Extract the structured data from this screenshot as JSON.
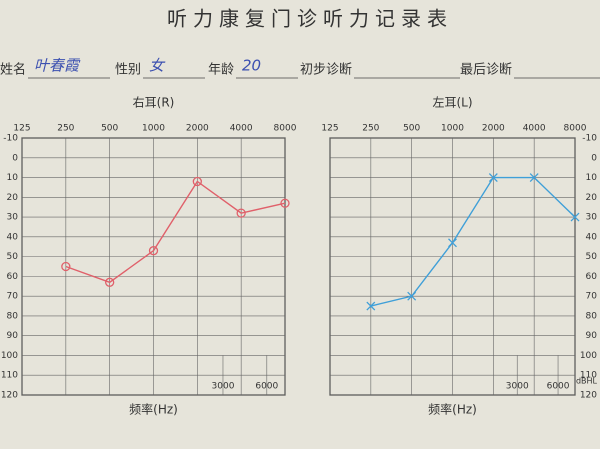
{
  "header": {
    "title": "听力康复门诊听力记录表",
    "fields": [
      {
        "label": "姓名",
        "value": "叶春霞"
      },
      {
        "label": "性别",
        "value": "女"
      },
      {
        "label": "年龄",
        "value": "20"
      },
      {
        "label": "初步诊断",
        "value": ""
      },
      {
        "label": "最后诊断",
        "value": ""
      }
    ]
  },
  "chart_data": [
    {
      "type": "line",
      "title": "右耳(R)",
      "xlabel": "频率(Hz)",
      "log_x": true,
      "xlim": [
        125,
        8000
      ],
      "xticks": [
        125,
        250,
        500,
        1000,
        2000,
        4000,
        8000
      ],
      "x2ticks": [
        3000,
        6000
      ],
      "ylim": [
        -10,
        120
      ],
      "reverse_y": true,
      "yticks": [
        -10,
        0,
        10,
        20,
        30,
        40,
        50,
        60,
        70,
        80,
        90,
        100,
        110,
        120
      ],
      "y_side": "left",
      "grid": true,
      "series": [
        {
          "color": "#e0606a",
          "marker": "circle",
          "x": [
            250,
            500,
            1000,
            2000,
            4000,
            8000
          ],
          "values": [
            55,
            63,
            47,
            12,
            28,
            23
          ]
        }
      ]
    },
    {
      "type": "line",
      "title": "左耳(L)",
      "xlabel": "频率(Hz)",
      "y_unit": "dBHL",
      "log_x": true,
      "xlim": [
        125,
        8000
      ],
      "xticks": [
        125,
        250,
        500,
        1000,
        2000,
        4000,
        8000
      ],
      "x2ticks": [
        3000,
        6000
      ],
      "ylim": [
        -10,
        120
      ],
      "reverse_y": true,
      "yticks": [
        -10,
        0,
        10,
        20,
        30,
        40,
        50,
        60,
        70,
        80,
        90,
        100,
        110,
        120
      ],
      "y_side": "right",
      "grid": true,
      "series": [
        {
          "color": "#3f9fd8",
          "marker": "cross",
          "x": [
            250,
            500,
            1000,
            2000,
            4000,
            8000
          ],
          "values": [
            75,
            70,
            43,
            10,
            10,
            30
          ]
        }
      ]
    }
  ]
}
